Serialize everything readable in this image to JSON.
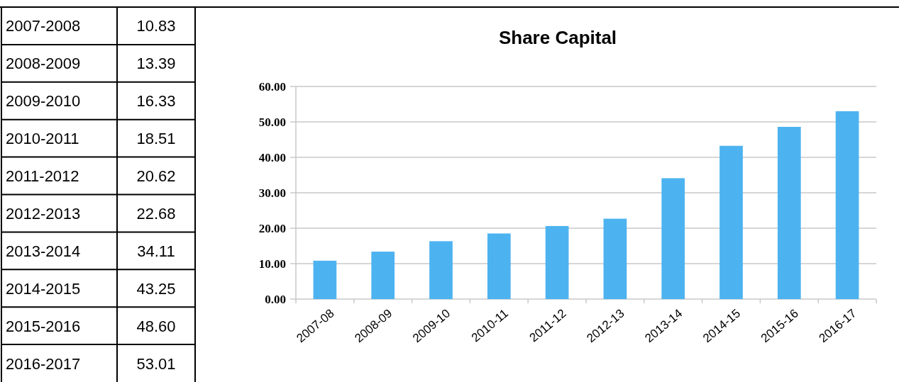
{
  "chart_data": [
    {
      "type": "other",
      "categories": [
        "2007-2008",
        "2008-2009",
        "2009-2010",
        "2010-2011",
        "2011-2012",
        "2012-2013",
        "2013-2014",
        "2014-2015",
        "2015-2016",
        "2016-2017"
      ],
      "value_labels": [
        "10.83",
        "13.39",
        "16.33",
        "18.51",
        "20.62",
        "22.68",
        "34.11",
        "43.25",
        "48.60",
        "53.01"
      ]
    },
    {
      "type": "bar",
      "title": "Share Capital",
      "categories": [
        "2007-08",
        "2008-09",
        "2009-10",
        "2010-11",
        "2011-12",
        "2012-13",
        "2013-14",
        "2014-15",
        "2015-16",
        "2016-17"
      ],
      "values": [
        10.83,
        13.39,
        16.33,
        18.51,
        20.62,
        22.68,
        34.11,
        43.25,
        48.6,
        53.01
      ],
      "color": "#4db3f0",
      "ylim": [
        0,
        60
      ],
      "yticks": [
        {
          "value": 0,
          "label": "0.00"
        },
        {
          "value": 10,
          "label": "10.00"
        },
        {
          "value": 20,
          "label": "20.00"
        },
        {
          "value": 30,
          "label": "30.00"
        },
        {
          "value": 40,
          "label": "40.00"
        },
        {
          "value": 50,
          "label": "50.00"
        },
        {
          "value": 60,
          "label": "60.00"
        }
      ],
      "grid": "y"
    }
  ]
}
